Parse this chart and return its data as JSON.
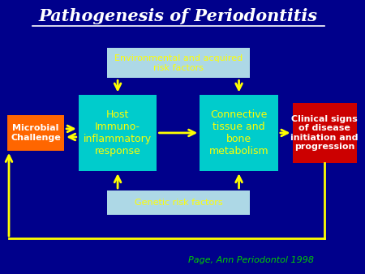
{
  "title": "Pathogenesis of Periodontitis",
  "title_color": "#ffffff",
  "title_fontsize": 15,
  "bg_color": "#00008B",
  "box_env_text": "Environmental and acquired\nrisk factors",
  "box_genetic_text": "Genetic risk factors",
  "box_host_text": "Host\nImmuno-\ninflammatory\nresponse",
  "box_connective_text": "Connective\ntissue and\nbone\nmetabolism",
  "box_microbial_text": "Microbial\nChallenge",
  "box_clinical_text": "Clinical signs\nof disease\ninitiation and\nprogression",
  "citation": "Page, Ann Periodontol 1998",
  "citation_color": "#00cc00",
  "box_env_color": "#add8e6",
  "box_genetic_color": "#add8e6",
  "box_center_color": "#00cccc",
  "box_microbial_color": "#ff6600",
  "box_clinical_color": "#cc0000",
  "text_yellow": "#ffff00",
  "text_white": "#ffffff",
  "arrow_color": "#ffff00"
}
